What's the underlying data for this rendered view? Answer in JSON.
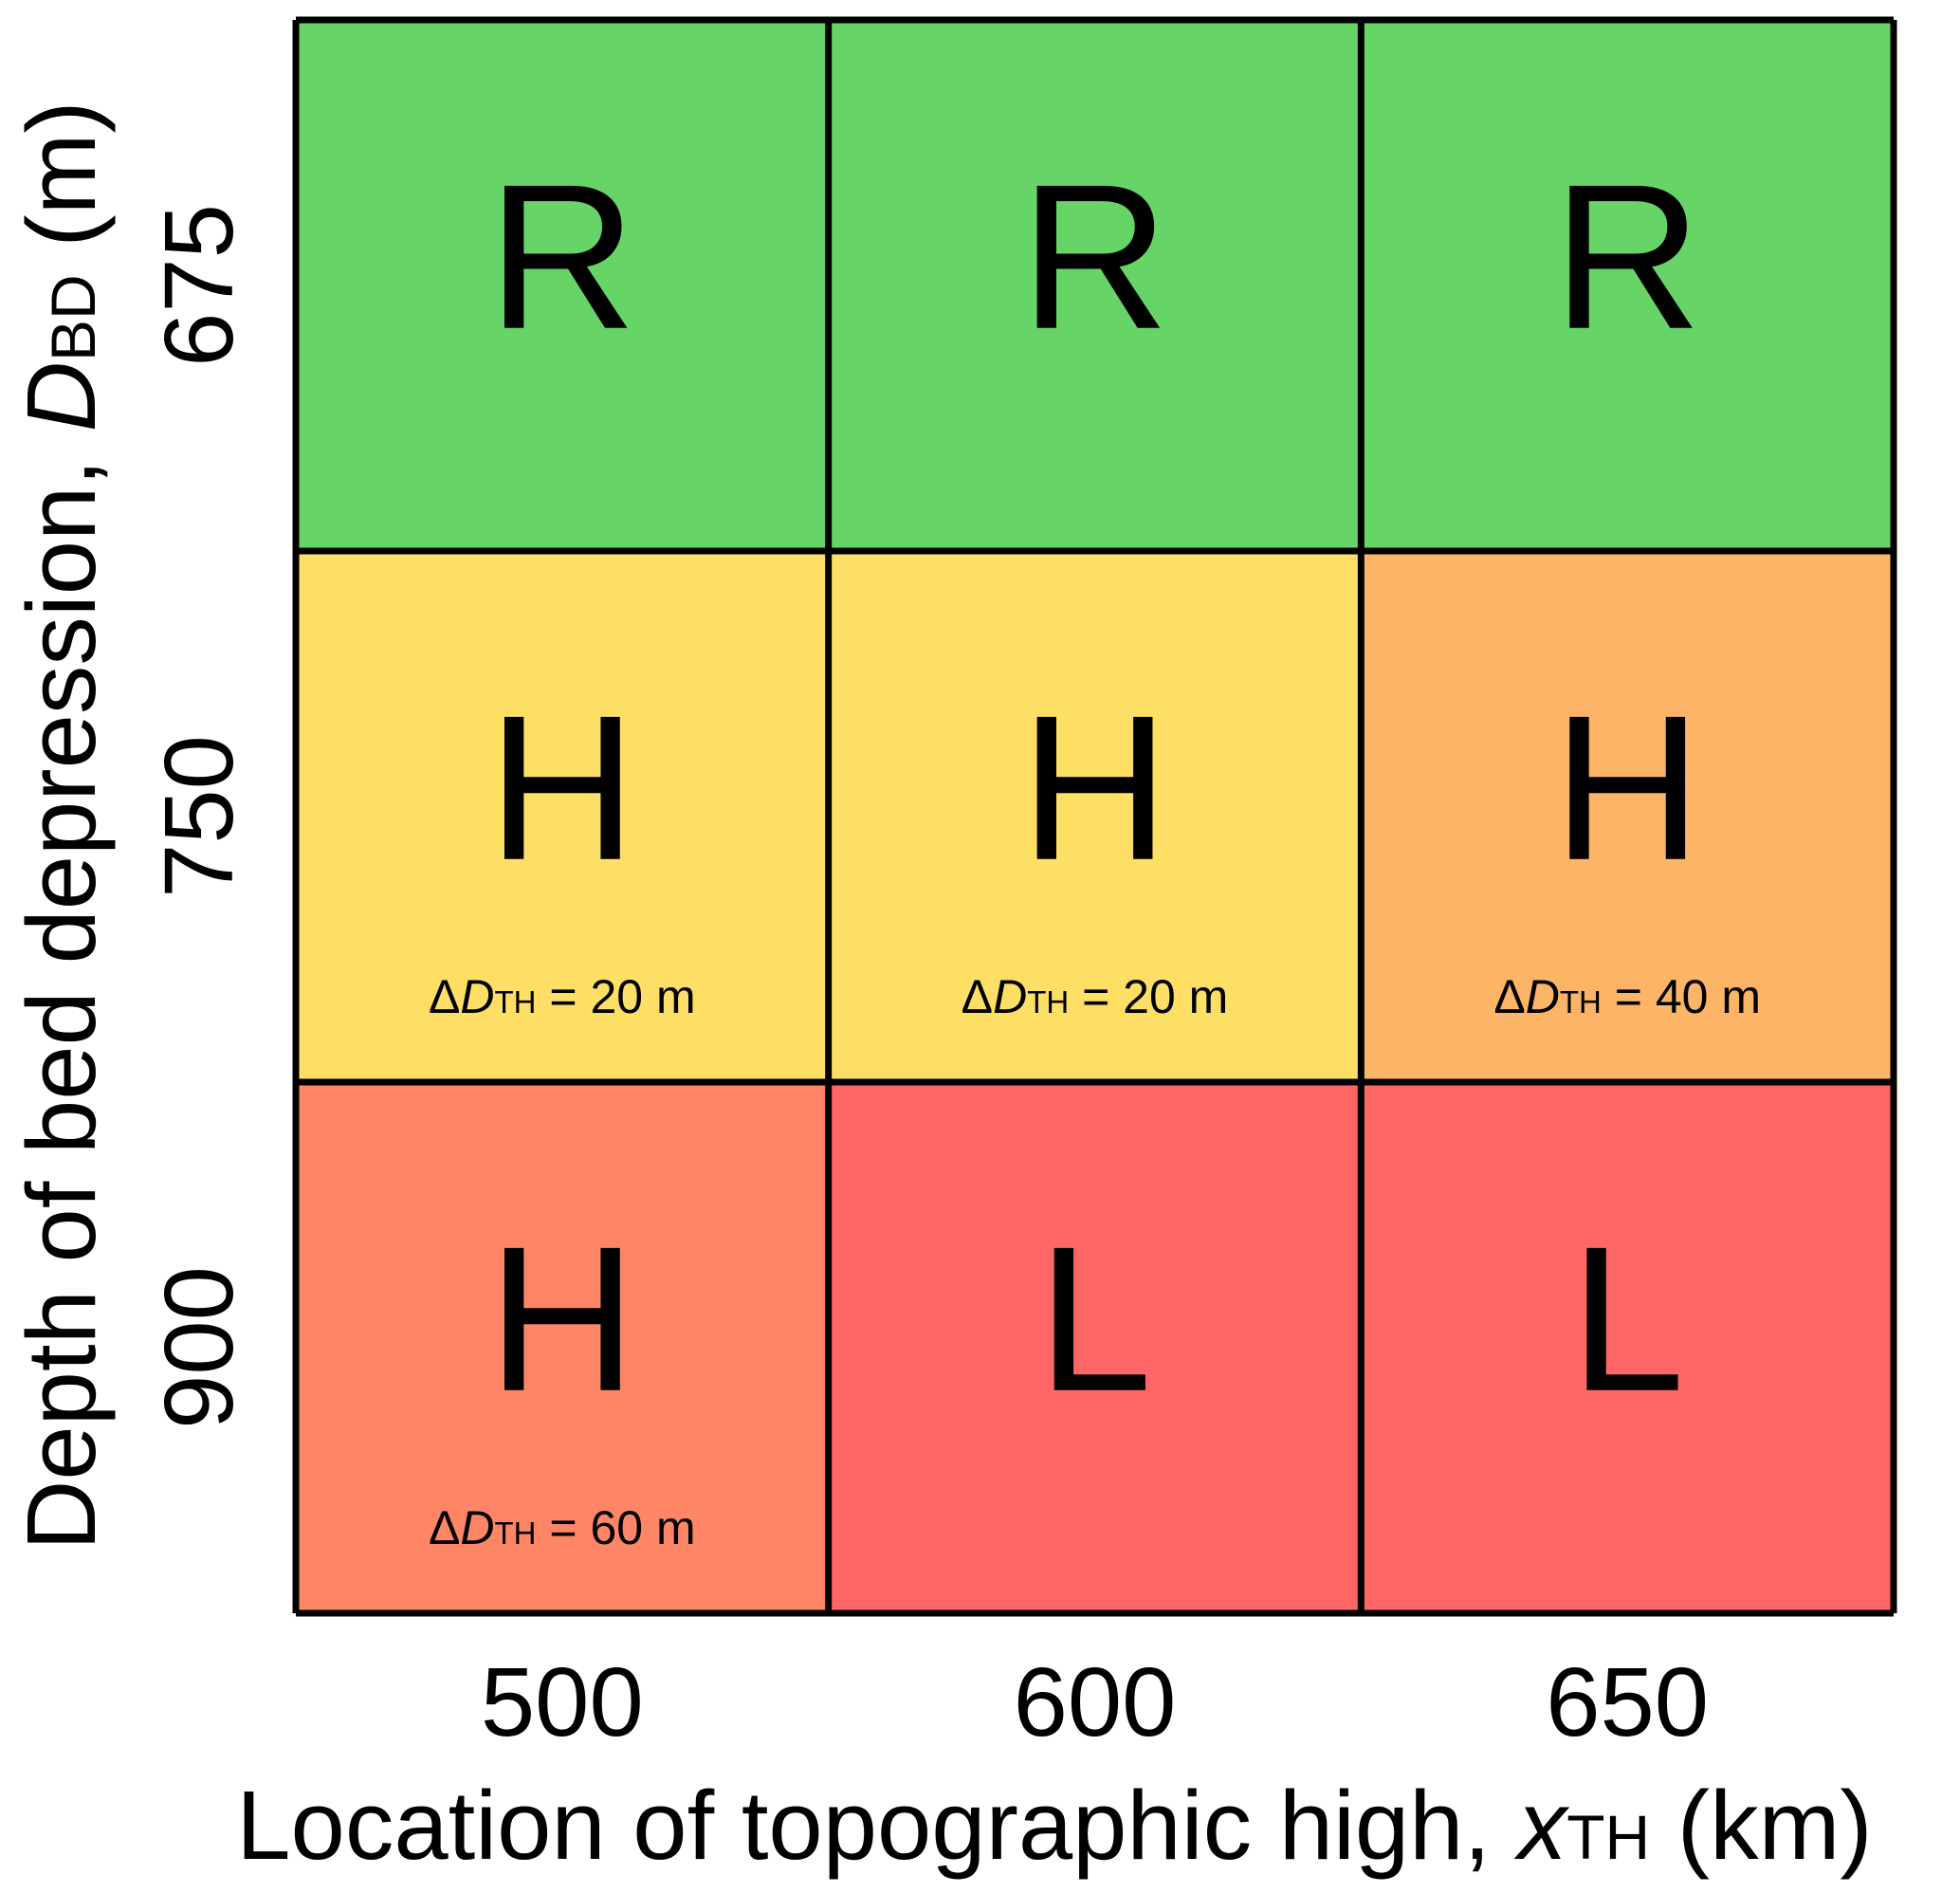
{
  "chart_data": {
    "type": "heatmap",
    "title": "",
    "xlabel": {
      "text": "Location of topographic high, ",
      "symbol": "x",
      "subscript": "TH",
      "unit": " (km)"
    },
    "ylabel": {
      "text": "Depth of bed depression, ",
      "symbol": "D",
      "subscript": "BD",
      "unit": " (m)"
    },
    "x_categories": [
      "500",
      "600",
      "650"
    ],
    "y_categories": [
      "675",
      "750",
      "900"
    ],
    "cells": [
      [
        {
          "letter": "R",
          "color": "#66d466",
          "note": null
        },
        {
          "letter": "R",
          "color": "#66d466",
          "note": null
        },
        {
          "letter": "R",
          "color": "#66d466",
          "note": null
        }
      ],
      [
        {
          "letter": "H",
          "color": "#fddf66",
          "note": {
            "prefix": "Δ",
            "symbol": "D",
            "subscript": "TH",
            "suffix": " = 20 m"
          }
        },
        {
          "letter": "H",
          "color": "#fddf66",
          "note": {
            "prefix": "Δ",
            "symbol": "D",
            "subscript": "TH",
            "suffix": " = 20 m"
          }
        },
        {
          "letter": "H",
          "color": "#fcb466",
          "note": {
            "prefix": "Δ",
            "symbol": "D",
            "subscript": "TH",
            "suffix": " = 40 m"
          }
        }
      ],
      [
        {
          "letter": "H",
          "color": "#fe8566",
          "note": {
            "prefix": "Δ",
            "symbol": "D",
            "subscript": "TH",
            "suffix": " = 60 m"
          }
        },
        {
          "letter": "L",
          "color": "#ff6666",
          "note": null
        },
        {
          "letter": "L",
          "color": "#ff6666",
          "note": null
        }
      ]
    ]
  }
}
